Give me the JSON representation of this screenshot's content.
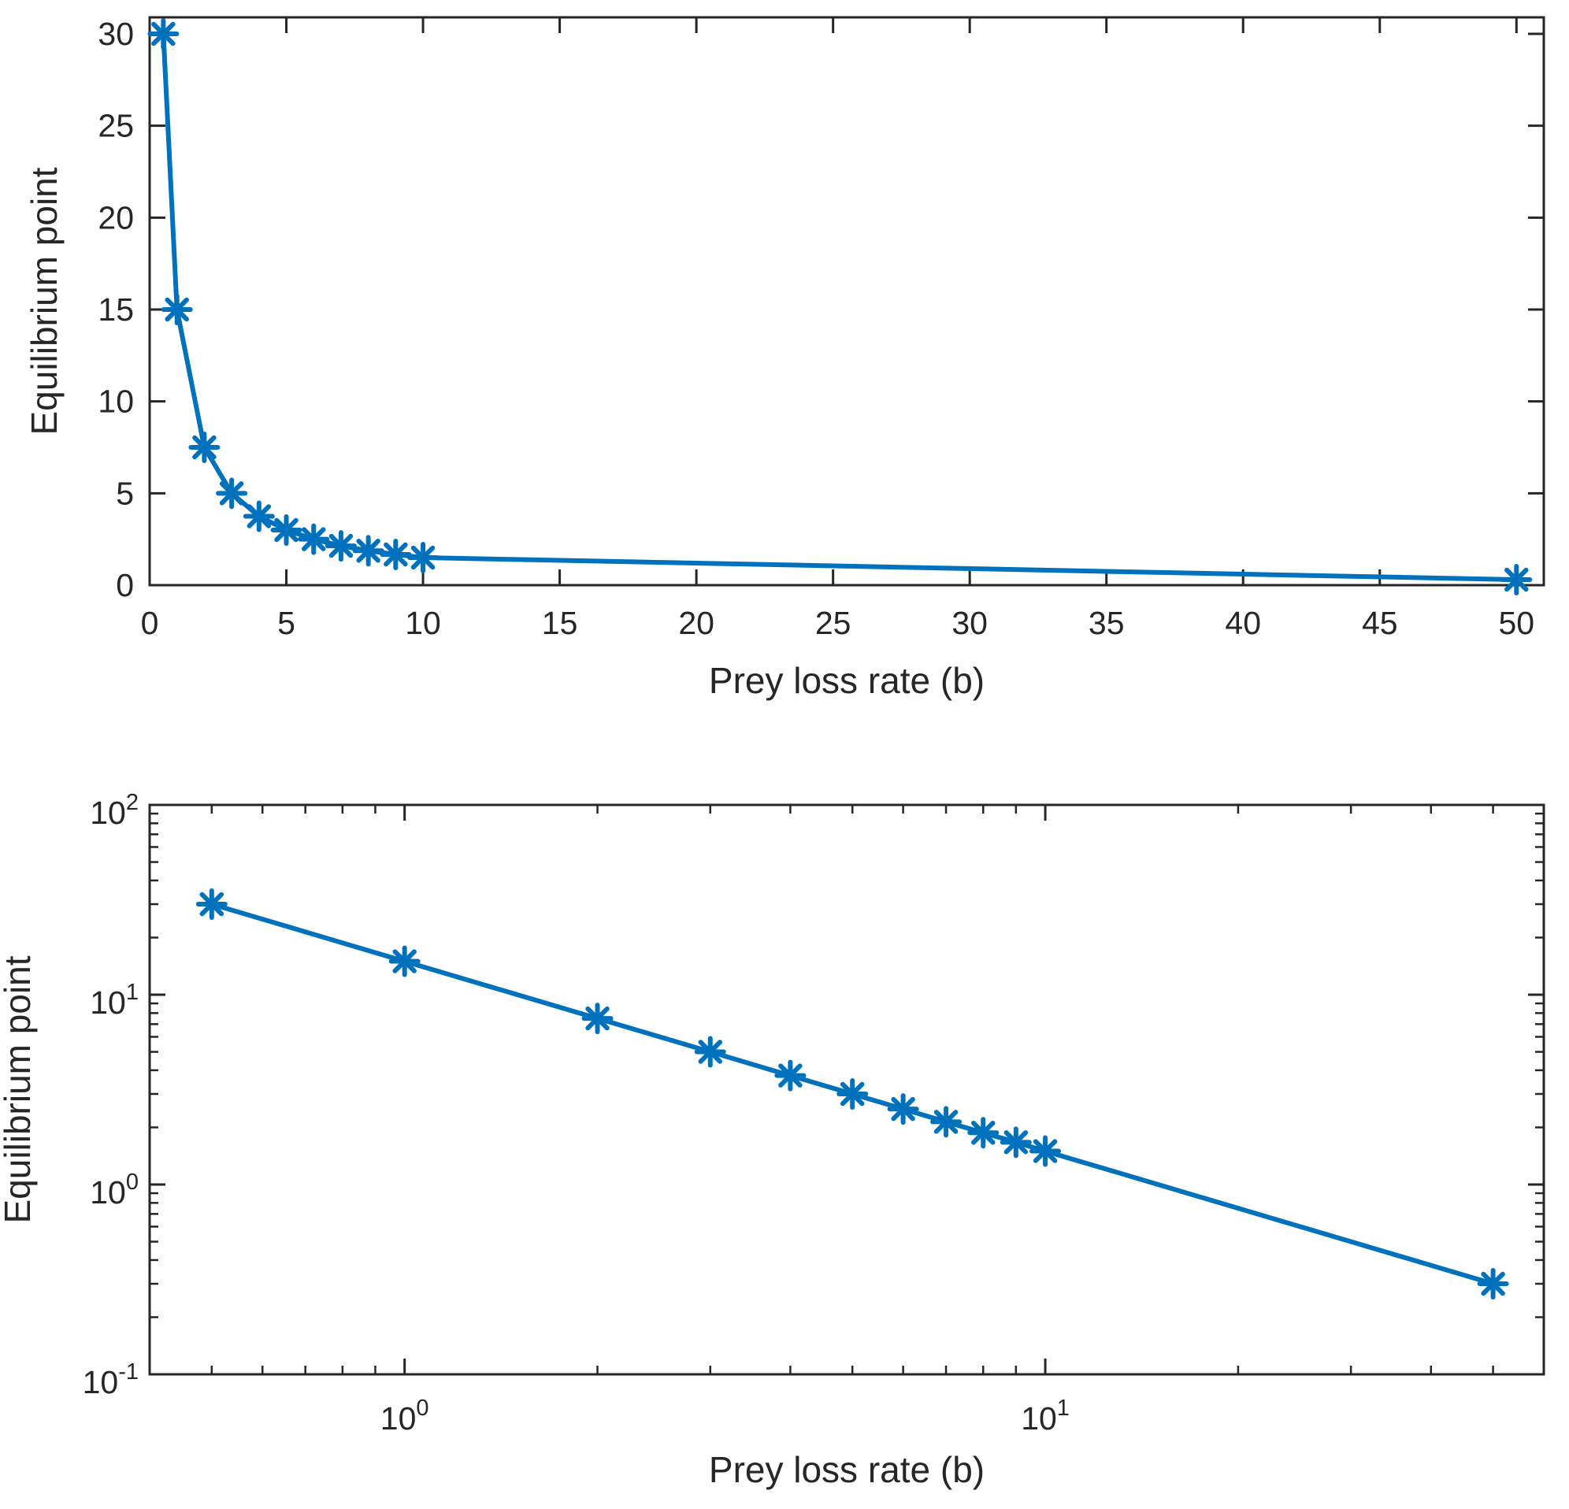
{
  "chart_data": [
    {
      "type": "line",
      "scale": "linear",
      "title": "",
      "xlabel": "Prey loss rate (b)",
      "ylabel": "Equilibrium point",
      "xlim": [
        0,
        51
      ],
      "ylim": [
        0,
        30.9
      ],
      "x_ticks": [
        0,
        5,
        10,
        15,
        20,
        25,
        30,
        35,
        40,
        45,
        50
      ],
      "x_tick_labels": [
        "0",
        "5",
        "10",
        "15",
        "20",
        "25",
        "30",
        "35",
        "40",
        "45",
        "50"
      ],
      "y_ticks": [
        0,
        5,
        10,
        15,
        20,
        25,
        30
      ],
      "y_tick_labels": [
        "0",
        "5",
        "10",
        "15",
        "20",
        "25",
        "30"
      ],
      "marker": "asterisk",
      "series": [
        {
          "name": "Equilibrium point",
          "color": "#0072BD",
          "x": [
            0.5,
            1,
            2,
            3,
            4,
            5,
            6,
            7,
            8,
            9,
            10,
            50
          ],
          "y": [
            30,
            15,
            7.5,
            5,
            3.75,
            3,
            2.5,
            2.14,
            1.875,
            1.67,
            1.5,
            0.3
          ]
        }
      ]
    },
    {
      "type": "line",
      "scale": "loglog",
      "title": "",
      "xlabel": "Prey loss rate (b)",
      "ylabel": "Equilibrium point",
      "xlim": [
        0.4,
        60
      ],
      "ylim": [
        0.1,
        100
      ],
      "x_ticks": [
        1,
        10
      ],
      "x_tick_labels": [
        {
          "base": "10",
          "exp": "0"
        },
        {
          "base": "10",
          "exp": "1"
        }
      ],
      "y_ticks": [
        0.1,
        1,
        10,
        100
      ],
      "y_tick_labels": [
        {
          "base": "10",
          "exp": "-1"
        },
        {
          "base": "10",
          "exp": "0"
        },
        {
          "base": "10",
          "exp": "1"
        },
        {
          "base": "10",
          "exp": "2"
        }
      ],
      "marker": "asterisk",
      "series": [
        {
          "name": "Equilibrium point",
          "color": "#0072BD",
          "x": [
            0.5,
            1,
            2,
            3,
            4,
            5,
            6,
            7,
            8,
            9,
            10,
            50
          ],
          "y": [
            30,
            15,
            7.5,
            5,
            3.75,
            3,
            2.5,
            2.14,
            1.875,
            1.67,
            1.5,
            0.3
          ]
        }
      ]
    }
  ]
}
